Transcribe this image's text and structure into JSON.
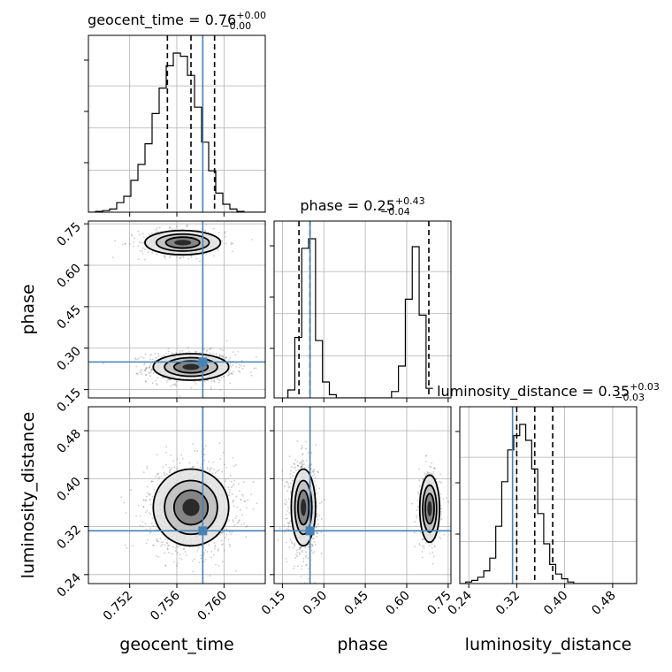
{
  "chart_data": {
    "type": "corner",
    "parameters": [
      {
        "name": "geocent_time",
        "range": [
          0.7485,
          0.7635
        ],
        "ticks": [
          0.752,
          0.756,
          0.76
        ],
        "tick_labels": [
          "0.752",
          "0.756",
          "0.760"
        ],
        "truth": 0.7582,
        "quantiles": [
          0.7552,
          0.7572,
          0.7592
        ],
        "title_main": "geocent_time = 0.76",
        "title_sup": "+0.00",
        "title_sub": "−0.00",
        "hist_edges_start": 0.7485,
        "hist_bin_width": 0.0006,
        "hist_counts": [
          0,
          0.005,
          0.01,
          0.02,
          0.06,
          0.1,
          0.2,
          0.3,
          0.43,
          0.62,
          0.78,
          0.92,
          1.0,
          0.98,
          0.86,
          0.66,
          0.44,
          0.26,
          0.12,
          0.05,
          0.02,
          0.005,
          0,
          0,
          0
        ]
      },
      {
        "name": "phase",
        "range": [
          0.12,
          0.76
        ],
        "ticks": [
          0.15,
          0.3,
          0.45,
          0.6,
          0.75
        ],
        "tick_labels": [
          "0.15",
          "0.30",
          "0.45",
          "0.60",
          "0.75"
        ],
        "truth": 0.25,
        "quantiles": [
          0.21,
          0.25,
          0.68
        ],
        "title_main": "phase = 0.25",
        "title_sup": "+0.43",
        "title_sub": "−0.04",
        "hist_edges_start": 0.17,
        "hist_bin_width": 0.025,
        "hist_counts": [
          0.05,
          0.38,
          0.94,
          1.0,
          0.36,
          0.1,
          0.02,
          0,
          0,
          0,
          0,
          0,
          0,
          0,
          0,
          0.04,
          0.2,
          0.62,
          0.95,
          0.52,
          0.06
        ]
      },
      {
        "name": "luminosity_distance",
        "range": [
          0.225,
          0.52
        ],
        "ticks": [
          0.24,
          0.32,
          0.4,
          0.48
        ],
        "tick_labels": [
          "0.24",
          "0.32",
          "0.40",
          "0.48"
        ],
        "truth": 0.313,
        "quantiles": [
          0.32,
          0.35,
          0.38
        ],
        "title_main": "luminosity_distance = 0.35",
        "title_sup": "+0.03",
        "title_sub": "−0.03",
        "hist_edges_start": 0.225,
        "hist_bin_width": 0.01,
        "hist_counts": [
          0,
          0.01,
          0.02,
          0.04,
          0.08,
          0.16,
          0.36,
          0.64,
          0.84,
          0.93,
          1.0,
          0.9,
          0.72,
          0.44,
          0.25,
          0.12,
          0.06,
          0.03,
          0.01,
          0,
          0,
          0,
          0,
          0,
          0,
          0,
          0,
          0,
          0,
          0
        ]
      }
    ],
    "truth_color": "#4682b4",
    "grid": true,
    "modes_2d": {
      "geocent_time__phase": [
        {
          "center": [
            0.7572,
            0.232
          ],
          "sigma": [
            0.0016,
            0.024
          ],
          "weight": 0.67
        },
        {
          "center": [
            0.7565,
            0.682
          ],
          "sigma": [
            0.0016,
            0.022
          ],
          "weight": 0.33
        }
      ],
      "geocent_time__luminosity_distance": [
        {
          "center": [
            0.7572,
            0.352
          ],
          "sigma": [
            0.0016,
            0.032
          ],
          "weight": 1.0
        }
      ],
      "phase__luminosity_distance": [
        {
          "center": [
            0.226,
            0.352
          ],
          "sigma": [
            0.022,
            0.032
          ],
          "weight": 0.67
        },
        {
          "center": [
            0.683,
            0.35
          ],
          "sigma": [
            0.018,
            0.028
          ],
          "weight": 0.33
        }
      ]
    }
  }
}
